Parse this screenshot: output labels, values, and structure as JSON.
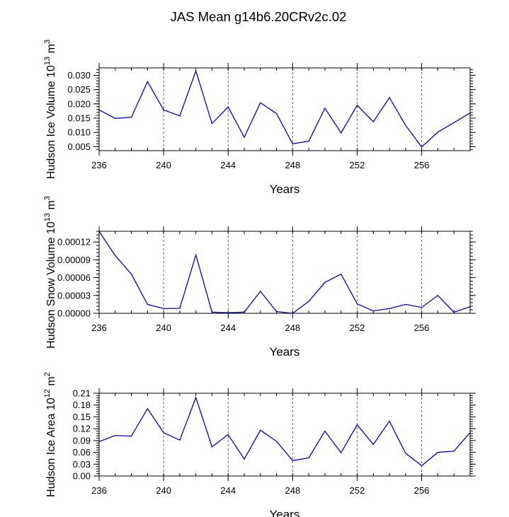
{
  "figure_title": "JAS Mean g14b6.20CRv2c.02",
  "colors": {
    "line": "#0000ee",
    "axis": "#000000",
    "grid": "#555555"
  },
  "chart_data": [
    {
      "type": "line",
      "title": "",
      "xlabel": "Years",
      "ylabel_main": "Hudson Ice Volume 10",
      "ylabel_exp": "13",
      "ylabel_unit": " m",
      "ylabel_unit_exp": "3",
      "xlim": [
        236,
        259
      ],
      "ylim": [
        0.0036,
        0.0326
      ],
      "xticks": [
        236,
        240,
        244,
        248,
        252,
        256
      ],
      "yticks": [
        0.005,
        0.01,
        0.015,
        0.02,
        0.025,
        0.03
      ],
      "ytick_labels": [
        "0.005",
        "0.010",
        "0.015",
        "0.020",
        "0.025",
        "0.030"
      ],
      "grid_x": [
        240,
        244,
        248,
        252,
        256
      ],
      "x": [
        236,
        237,
        238,
        239,
        240,
        241,
        242,
        243,
        244,
        245,
        246,
        247,
        248,
        249,
        250,
        251,
        252,
        253,
        254,
        255,
        256,
        257,
        258,
        259
      ],
      "values": [
        0.0179,
        0.0149,
        0.0153,
        0.0278,
        0.0179,
        0.0158,
        0.0315,
        0.0131,
        0.0189,
        0.0083,
        0.0204,
        0.0166,
        0.006,
        0.0069,
        0.0185,
        0.0098,
        0.0195,
        0.0137,
        0.0222,
        0.0125,
        0.0049,
        0.0101,
        0.0134,
        0.0168
      ]
    },
    {
      "type": "line",
      "title": "",
      "xlabel": "Years",
      "ylabel_main": "Hudson Snow Volume 10",
      "ylabel_exp": "13",
      "ylabel_unit": " m",
      "ylabel_unit_exp": "3",
      "xlim": [
        236,
        259
      ],
      "ylim": [
        0.0,
        0.000138
      ],
      "xticks": [
        236,
        240,
        244,
        248,
        252,
        256
      ],
      "yticks": [
        0.0,
        3e-05,
        6e-05,
        9e-05,
        0.00012
      ],
      "ytick_labels": [
        "0.00000",
        "0.00003",
        "0.00006",
        "0.00009",
        "0.00012"
      ],
      "grid_x": [
        240,
        244,
        248,
        252,
        256
      ],
      "x": [
        236,
        237,
        238,
        239,
        240,
        241,
        242,
        243,
        244,
        245,
        246,
        247,
        248,
        249,
        250,
        251,
        252,
        253,
        254,
        255,
        256,
        257,
        258,
        259
      ],
      "values": [
        0.000138,
        9.7e-05,
        6.6e-05,
        1.5e-05,
        8e-06,
        8.5e-06,
        9.8e-05,
        2e-06,
        1e-06,
        2e-06,
        3.7e-05,
        3e-06,
        0.0,
        2e-05,
        5.2e-05,
        6.6e-05,
        1.6e-05,
        4e-06,
        8e-06,
        1.5e-05,
        1e-05,
        3e-05,
        2e-06,
        1.1e-05
      ]
    },
    {
      "type": "line",
      "title": "",
      "xlabel": "Years",
      "ylabel_main": "Hudson Ice Area 10",
      "ylabel_exp": "12",
      "ylabel_unit": " m",
      "ylabel_unit_exp": "2",
      "xlim": [
        236,
        259
      ],
      "ylim": [
        0.0,
        0.21
      ],
      "xticks": [
        236,
        240,
        244,
        248,
        252,
        256
      ],
      "yticks": [
        0.0,
        0.03,
        0.06,
        0.09,
        0.12,
        0.15,
        0.18,
        0.21
      ],
      "ytick_labels": [
        "0.00",
        "0.03",
        "0.06",
        "0.09",
        "0.12",
        "0.15",
        "0.18",
        "0.21"
      ],
      "grid_x": [
        240,
        244,
        248,
        252,
        256
      ],
      "x": [
        236,
        237,
        238,
        239,
        240,
        241,
        242,
        243,
        244,
        245,
        246,
        247,
        248,
        249,
        250,
        251,
        252,
        253,
        254,
        255,
        256,
        257,
        258,
        259
      ],
      "values": [
        0.087,
        0.103,
        0.101,
        0.171,
        0.11,
        0.091,
        0.199,
        0.074,
        0.105,
        0.043,
        0.116,
        0.088,
        0.039,
        0.046,
        0.114,
        0.059,
        0.13,
        0.08,
        0.139,
        0.058,
        0.026,
        0.06,
        0.063,
        0.11
      ]
    }
  ]
}
